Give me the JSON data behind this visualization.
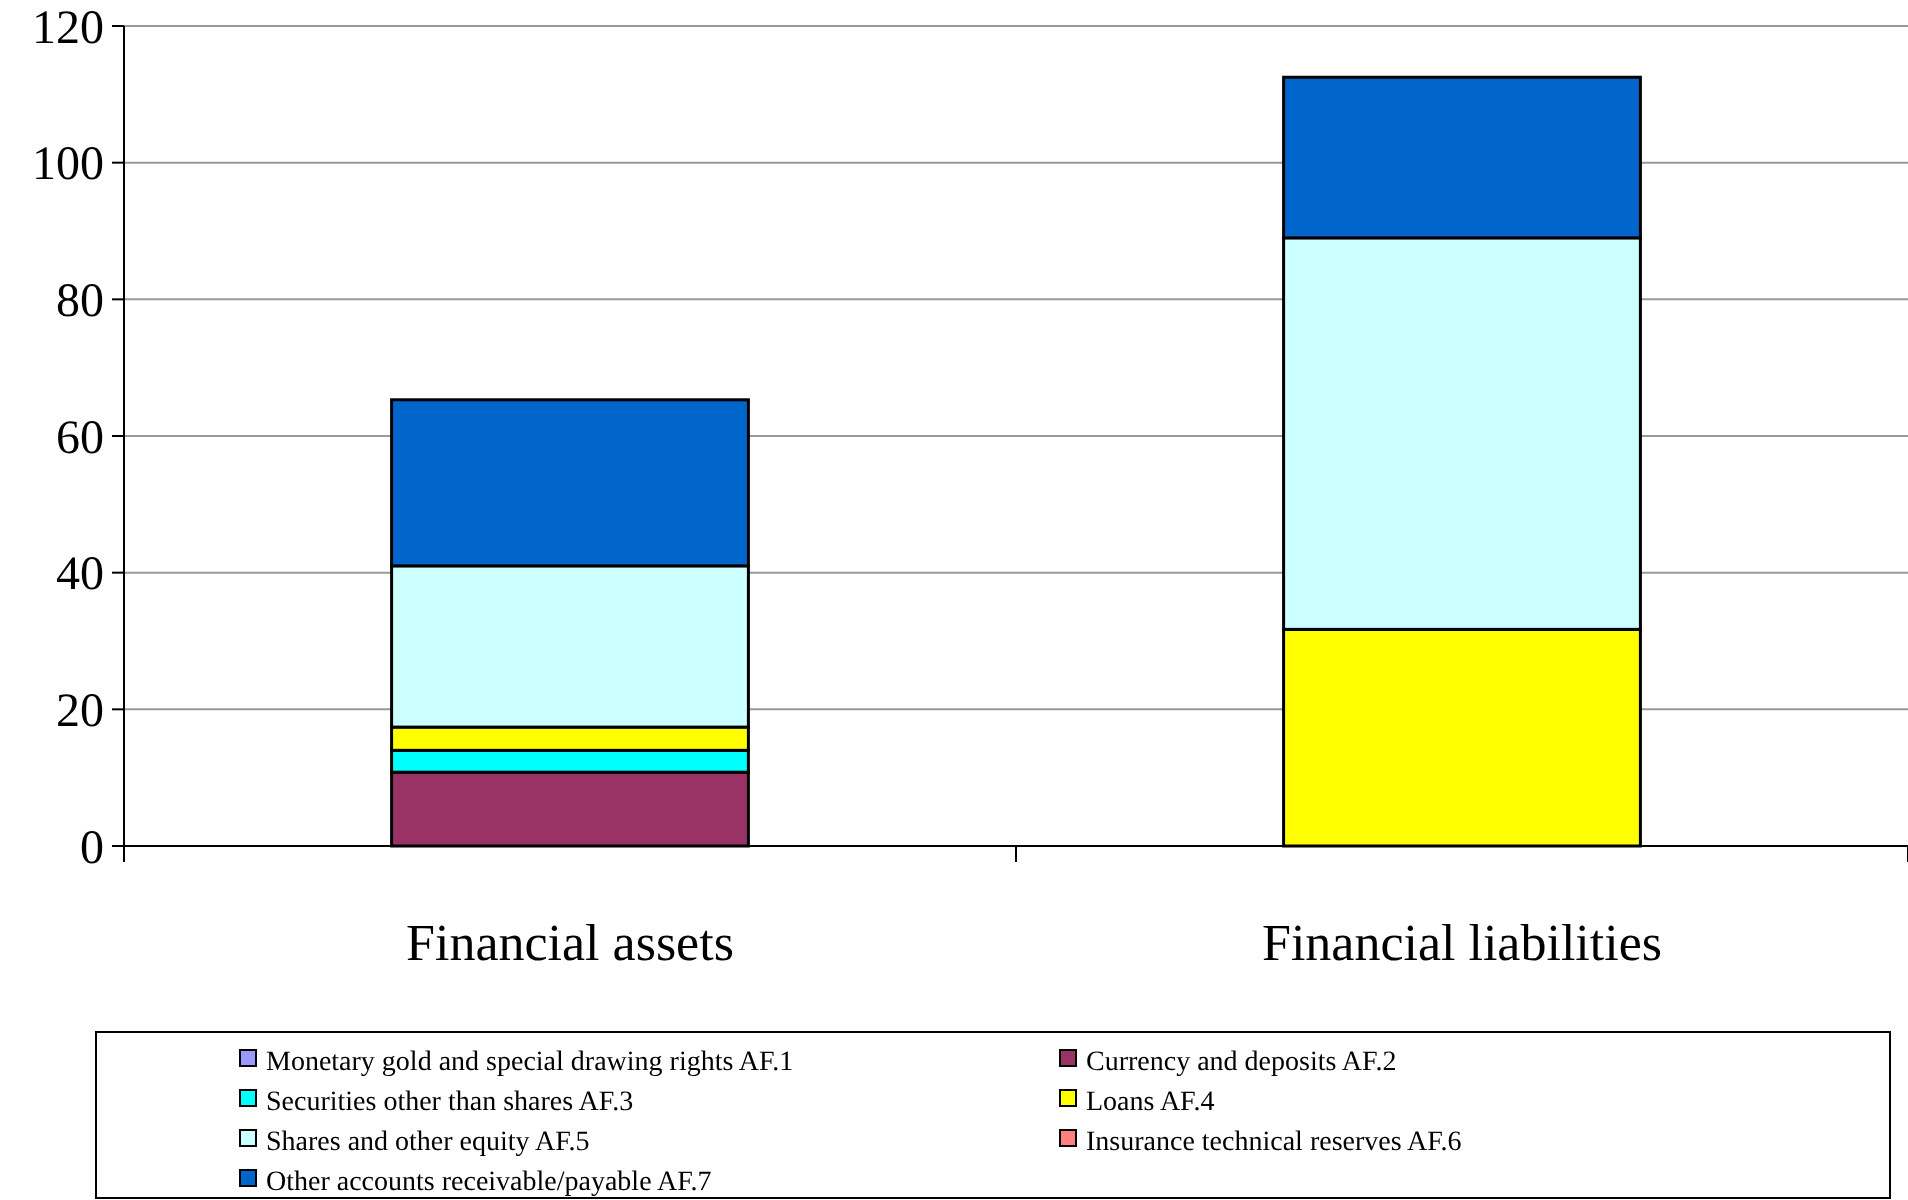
{
  "chart_data": {
    "type": "bar",
    "stacked": true,
    "categories": [
      "Financial assets",
      "Financial liabilities"
    ],
    "ylim": [
      0,
      120
    ],
    "yticks": [
      0,
      20,
      40,
      60,
      80,
      100,
      120
    ],
    "grid": "y",
    "legend": "bottom",
    "series": [
      {
        "name": "Monetary gold and special drawing rights AF.1",
        "color": "#9999ff",
        "values": [
          0,
          0
        ]
      },
      {
        "name": "Currency and deposits AF.2",
        "color": "#993366",
        "values": [
          10.8,
          null
        ]
      },
      {
        "name": "Securities other than shares AF.3",
        "color": "#00ffff",
        "values": [
          3.2,
          0
        ]
      },
      {
        "name": "Loans AF.4",
        "color": "#ffff00",
        "values": [
          3.4,
          31.7
        ]
      },
      {
        "name": "Shares and other equity AF.5",
        "color": "#ccffff",
        "values": [
          23.6,
          57.3
        ]
      },
      {
        "name": "Insurance technical reserves AF.6",
        "color": "#ff8080",
        "values": [
          0,
          0
        ]
      },
      {
        "name": "Other accounts receivable/payable AF.7",
        "color": "#0066cc",
        "values": [
          24.3,
          23.5
        ]
      }
    ]
  }
}
